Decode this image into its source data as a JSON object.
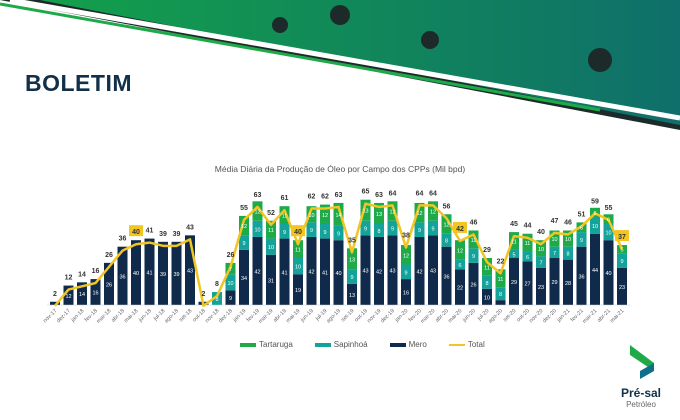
{
  "header": {
    "title": "BOLETIM"
  },
  "logo": {
    "line1": "Pré-sal",
    "line2": "Petróleo"
  },
  "colors": {
    "tartaruga": "#1faa4a",
    "sapinhoa": "#13a39b",
    "mero": "#0f2a4a",
    "total": "#f2c523",
    "title": "#12304a"
  },
  "chart_data": {
    "type": "bar",
    "stacked": true,
    "title": "Média Diária da Produção de Óleo por Campo dos CPPs (Mil bpd)",
    "xlabel": "",
    "ylabel": "",
    "ylim": [
      0,
      70
    ],
    "grid": false,
    "legend_position": "bottom",
    "legend": [
      "Tartaruga",
      "Sapinhoá",
      "Mero",
      "Total"
    ],
    "categories": [
      "nov-17",
      "dez-17",
      "jan-18",
      "fev-18",
      "mar-18",
      "abr-18",
      "mai-18",
      "jun-18",
      "jul-18",
      "ago-18",
      "set-18",
      "out-18",
      "nov-18",
      "dez-18",
      "jan-19",
      "fev-19",
      "mar-19",
      "abr-19",
      "mai-19",
      "jun-19",
      "jul-19",
      "ago-19",
      "set-19",
      "out-19",
      "nov-19",
      "dez-19",
      "jan-20",
      "fev-20",
      "mar-20",
      "abr-20",
      "mai-20",
      "jun-20",
      "jul-20",
      "ago-20",
      "set-20",
      "out-20",
      "nov-20",
      "dez-20",
      "jan-21",
      "fev-21",
      "mar-21",
      "abr-21",
      "mai-21"
    ],
    "series": [
      {
        "name": "Mero",
        "values": [
          2,
          12,
          14,
          16,
          26,
          36,
          40,
          41,
          39,
          39,
          43,
          2,
          0,
          9,
          34,
          42,
          31,
          41,
          19,
          42,
          41,
          40,
          13,
          43,
          42,
          43,
          16,
          42,
          43,
          36,
          22,
          26,
          10,
          3,
          29,
          27,
          23,
          29,
          28,
          36,
          44,
          40,
          23
        ]
      },
      {
        "name": "Sapinhoá",
        "values": [
          0,
          0,
          0,
          0,
          0,
          0,
          0,
          0,
          0,
          0,
          0,
          0,
          8,
          10,
          9,
          10,
          10,
          9,
          10,
          9,
          9,
          9,
          9,
          9,
          8,
          9,
          9,
          9,
          9,
          8,
          6,
          9,
          8,
          8,
          5,
          6,
          7,
          7,
          8,
          9,
          10,
          10,
          9
        ]
      },
      {
        "name": "Tartaruga",
        "values": [
          0,
          0,
          0,
          0,
          0,
          0,
          0,
          0,
          0,
          0,
          0,
          0,
          0,
          7,
          12,
          12,
          11,
          11,
          11,
          10,
          12,
          14,
          13,
          13,
          13,
          12,
          12,
          12,
          12,
          12,
          12,
          11,
          11,
          11,
          11,
          11,
          10,
          10,
          10,
          6,
          6,
          6,
          5
        ]
      },
      {
        "name": "Total",
        "values": [
          2,
          12,
          14,
          16,
          26,
          36,
          40,
          41,
          39,
          39,
          43,
          2,
          8,
          26,
          55,
          63,
          52,
          61,
          40,
          62,
          62,
          63,
          35,
          65,
          63,
          64,
          38,
          64,
          64,
          56,
          42,
          46,
          29,
          22,
          45,
          44,
          40,
          47,
          46,
          51,
          59,
          55,
          37
        ]
      }
    ],
    "highlighted": [
      "mai-18",
      "mai-19",
      "mai-20",
      "mai-21"
    ]
  }
}
